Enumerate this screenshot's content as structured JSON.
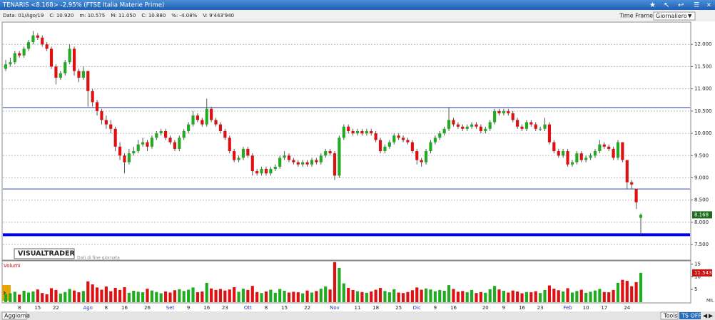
{
  "window": {
    "title": "TENARIS <8.168> -2.95% (FTSE Italia Materie Prime)",
    "info": [
      "Data: 01/Ago/19",
      "C: 10.920",
      "m: 10.575",
      "M: 11.050",
      "C: 10.880",
      "%: -4.08%",
      "V: 9'443'940"
    ],
    "time_frame_label": "Time Frame",
    "time_frame": "Giornaliero",
    "brand": "VISUALTRADER",
    "brand_note": "Dati di fine giornata",
    "buttons": [
      "Aggiorna",
      "Tools",
      "TS OFF"
    ]
  },
  "chart_data": {
    "type": "candlestick",
    "up_color": "#22aa22",
    "down_color": "#dd1111",
    "month_label_color": "#2233cc",
    "grid": true,
    "ylim": [
      7.15,
      12.5
    ],
    "yticks": [
      {
        "value": 7.5,
        "label": "7.500"
      },
      {
        "value": 8,
        "label": "8.000"
      },
      {
        "value": 8.5,
        "label": "8.500"
      },
      {
        "value": 9,
        "label": "9.000"
      },
      {
        "value": 9.5,
        "label": "9.500"
      },
      {
        "value": 10,
        "label": "10.000"
      },
      {
        "value": 10.5,
        "label": "10.500"
      },
      {
        "value": 11,
        "label": "11.000"
      },
      {
        "value": 11.5,
        "label": "11.500"
      },
      {
        "value": 12,
        "label": "12.000"
      }
    ],
    "trend_lines": [
      10.58,
      8.75
    ],
    "support_line": 7.72,
    "categories": [
      null,
      null,
      null,
      "8",
      null,
      null,
      null,
      "15",
      null,
      null,
      null,
      "22",
      null,
      null,
      null,
      null,
      null,
      null,
      "Ago",
      null,
      null,
      null,
      "8",
      null,
      null,
      null,
      "16",
      null,
      null,
      null,
      null,
      "26",
      null,
      null,
      null,
      null,
      "Set",
      null,
      null,
      null,
      "9",
      null,
      null,
      null,
      "16",
      null,
      null,
      null,
      "23",
      null,
      null,
      null,
      null,
      "Ott",
      null,
      null,
      null,
      "8",
      null,
      null,
      null,
      "15",
      null,
      null,
      null,
      null,
      "22",
      null,
      null,
      null,
      null,
      null,
      "Nov",
      null,
      null,
      null,
      null,
      "11",
      null,
      null,
      null,
      "18",
      null,
      null,
      null,
      null,
      "25",
      null,
      null,
      null,
      "Dic",
      null,
      null,
      null,
      "9",
      null,
      null,
      null,
      "16",
      null,
      null,
      null,
      null,
      null,
      null,
      "20",
      null,
      null,
      null,
      "9",
      null,
      null,
      null,
      "16",
      null,
      null,
      null,
      "23",
      null,
      null,
      null,
      null,
      null,
      "Feb",
      null,
      null,
      null,
      "10",
      null,
      null,
      null,
      "17",
      null,
      null,
      null,
      null,
      "24",
      null,
      null,
      null
    ],
    "candles": [
      [
        11.45,
        11.65,
        11.4,
        11.55
      ],
      [
        11.55,
        11.7,
        11.5,
        11.6
      ],
      [
        11.6,
        11.85,
        11.55,
        11.8
      ],
      [
        11.8,
        11.85,
        11.7,
        11.75
      ],
      [
        11.75,
        11.95,
        11.7,
        11.9
      ],
      [
        11.9,
        12.1,
        11.85,
        12.05
      ],
      [
        12.05,
        12.3,
        12.0,
        12.2
      ],
      [
        12.2,
        12.25,
        12.1,
        12.15
      ],
      [
        12.15,
        12.2,
        11.95,
        12.0
      ],
      [
        12.0,
        12.05,
        11.85,
        11.9
      ],
      [
        11.9,
        11.95,
        11.45,
        11.5
      ],
      [
        11.5,
        11.55,
        11.1,
        11.25
      ],
      [
        11.25,
        11.4,
        11.2,
        11.35
      ],
      [
        11.35,
        11.65,
        11.3,
        11.6
      ],
      [
        11.6,
        12.0,
        11.55,
        11.9
      ],
      [
        11.9,
        11.95,
        11.3,
        11.4
      ],
      [
        11.4,
        11.45,
        11.15,
        11.25
      ],
      [
        11.25,
        11.5,
        11.2,
        11.4
      ],
      [
        11.4,
        11.4,
        10.6,
        10.95
      ],
      [
        10.95,
        11.0,
        10.6,
        10.7
      ],
      [
        10.7,
        10.75,
        10.4,
        10.5
      ],
      [
        10.5,
        10.55,
        10.2,
        10.3
      ],
      [
        10.3,
        10.4,
        10.1,
        10.2
      ],
      [
        10.2,
        10.3,
        10.0,
        10.1
      ],
      [
        10.1,
        10.15,
        9.6,
        9.7
      ],
      [
        9.7,
        9.8,
        9.4,
        9.5
      ],
      [
        9.5,
        9.55,
        9.1,
        9.35
      ],
      [
        9.35,
        9.65,
        9.3,
        9.55
      ],
      [
        9.55,
        9.7,
        9.5,
        9.6
      ],
      [
        9.6,
        9.85,
        9.55,
        9.75
      ],
      [
        9.75,
        9.9,
        9.7,
        9.8
      ],
      [
        9.8,
        9.85,
        9.6,
        9.7
      ],
      [
        9.7,
        9.95,
        9.65,
        9.9
      ],
      [
        9.9,
        10.05,
        9.85,
        10.0
      ],
      [
        10.0,
        10.1,
        9.95,
        10.05
      ],
      [
        10.05,
        10.1,
        9.85,
        9.9
      ],
      [
        9.9,
        9.95,
        9.75,
        9.8
      ],
      [
        9.8,
        9.85,
        9.6,
        9.65
      ],
      [
        9.65,
        9.95,
        9.6,
        9.9
      ],
      [
        9.9,
        10.1,
        9.85,
        10.05
      ],
      [
        10.05,
        10.25,
        10.0,
        10.2
      ],
      [
        10.2,
        10.5,
        10.15,
        10.4
      ],
      [
        10.4,
        10.45,
        10.25,
        10.3
      ],
      [
        10.3,
        10.35,
        10.15,
        10.2
      ],
      [
        10.2,
        10.78,
        10.15,
        10.55
      ],
      [
        10.55,
        10.6,
        10.25,
        10.3
      ],
      [
        10.3,
        10.35,
        10.15,
        10.2
      ],
      [
        10.2,
        10.25,
        10.0,
        10.05
      ],
      [
        10.05,
        10.1,
        9.85,
        9.9
      ],
      [
        9.9,
        9.95,
        9.55,
        9.6
      ],
      [
        9.6,
        9.65,
        9.35,
        9.4
      ],
      [
        9.4,
        9.5,
        9.35,
        9.45
      ],
      [
        9.45,
        9.7,
        9.4,
        9.65
      ],
      [
        9.65,
        9.7,
        9.45,
        9.5
      ],
      [
        9.5,
        9.55,
        9.05,
        9.15
      ],
      [
        9.15,
        9.2,
        9.05,
        9.1
      ],
      [
        9.1,
        9.25,
        9.05,
        9.2
      ],
      [
        9.2,
        9.25,
        9.05,
        9.1
      ],
      [
        9.1,
        9.25,
        9.05,
        9.2
      ],
      [
        9.2,
        9.3,
        9.15,
        9.25
      ],
      [
        9.25,
        9.5,
        9.2,
        9.45
      ],
      [
        9.45,
        9.6,
        9.4,
        9.5
      ],
      [
        9.5,
        9.55,
        9.35,
        9.4
      ],
      [
        9.4,
        9.45,
        9.3,
        9.35
      ],
      [
        9.35,
        9.4,
        9.25,
        9.3
      ],
      [
        9.3,
        9.4,
        9.25,
        9.35
      ],
      [
        9.35,
        9.4,
        9.25,
        9.3
      ],
      [
        9.3,
        9.45,
        9.25,
        9.4
      ],
      [
        9.4,
        9.45,
        9.3,
        9.35
      ],
      [
        9.35,
        9.55,
        9.3,
        9.5
      ],
      [
        9.5,
        9.65,
        9.45,
        9.6
      ],
      [
        9.6,
        9.65,
        9.5,
        9.55
      ],
      [
        9.55,
        9.6,
        8.95,
        9.05
      ],
      [
        9.05,
        9.95,
        9.0,
        9.9
      ],
      [
        9.9,
        10.2,
        9.85,
        10.15
      ],
      [
        10.15,
        10.2,
        10.0,
        10.05
      ],
      [
        10.05,
        10.1,
        9.95,
        10.0
      ],
      [
        10.0,
        10.1,
        9.95,
        10.05
      ],
      [
        10.05,
        10.1,
        9.95,
        10.0
      ],
      [
        10.0,
        10.1,
        9.95,
        10.05
      ],
      [
        10.05,
        10.1,
        9.95,
        10.0
      ],
      [
        10.0,
        10.05,
        9.8,
        9.85
      ],
      [
        9.85,
        9.9,
        9.55,
        9.6
      ],
      [
        9.6,
        9.75,
        9.55,
        9.7
      ],
      [
        9.7,
        9.85,
        9.65,
        9.8
      ],
      [
        9.8,
        10.0,
        9.75,
        9.95
      ],
      [
        9.95,
        10.0,
        9.85,
        9.9
      ],
      [
        9.9,
        9.95,
        9.8,
        9.85
      ],
      [
        9.85,
        9.9,
        9.75,
        9.8
      ],
      [
        9.8,
        9.85,
        9.55,
        9.6
      ],
      [
        9.6,
        9.65,
        9.3,
        9.4
      ],
      [
        9.4,
        9.45,
        9.25,
        9.35
      ],
      [
        9.35,
        9.65,
        9.3,
        9.6
      ],
      [
        9.6,
        9.85,
        9.55,
        9.8
      ],
      [
        9.8,
        9.95,
        9.75,
        9.9
      ],
      [
        9.9,
        10.05,
        9.85,
        10.0
      ],
      [
        10.0,
        10.15,
        9.95,
        10.1
      ],
      [
        10.1,
        10.58,
        10.05,
        10.3
      ],
      [
        10.3,
        10.35,
        10.15,
        10.2
      ],
      [
        10.2,
        10.25,
        10.1,
        10.15
      ],
      [
        10.15,
        10.2,
        10.05,
        10.1
      ],
      [
        10.1,
        10.2,
        10.05,
        10.15
      ],
      [
        10.15,
        10.25,
        10.1,
        10.2
      ],
      [
        10.2,
        10.25,
        10.1,
        10.15
      ],
      [
        10.15,
        10.2,
        10.0,
        10.05
      ],
      [
        10.05,
        10.15,
        10.0,
        10.1
      ],
      [
        10.1,
        10.3,
        10.05,
        10.25
      ],
      [
        10.25,
        10.55,
        10.2,
        10.5
      ],
      [
        10.5,
        10.55,
        10.4,
        10.45
      ],
      [
        10.45,
        10.55,
        10.4,
        10.5
      ],
      [
        10.5,
        10.55,
        10.4,
        10.45
      ],
      [
        10.45,
        10.5,
        10.25,
        10.3
      ],
      [
        10.3,
        10.35,
        10.1,
        10.15
      ],
      [
        10.15,
        10.2,
        10.05,
        10.1
      ],
      [
        10.1,
        10.3,
        10.05,
        10.25
      ],
      [
        10.25,
        10.3,
        10.15,
        10.2
      ],
      [
        10.2,
        10.25,
        10.05,
        10.1
      ],
      [
        10.1,
        10.15,
        10.05,
        10.1
      ],
      [
        10.1,
        10.35,
        10.05,
        10.2
      ],
      [
        10.2,
        10.25,
        9.75,
        9.8
      ],
      [
        9.8,
        9.85,
        9.55,
        9.6
      ],
      [
        9.6,
        9.65,
        9.45,
        9.5
      ],
      [
        9.5,
        9.65,
        9.45,
        9.6
      ],
      [
        9.6,
        9.65,
        9.25,
        9.3
      ],
      [
        9.3,
        9.4,
        9.25,
        9.35
      ],
      [
        9.35,
        9.6,
        9.3,
        9.55
      ],
      [
        9.55,
        9.6,
        9.35,
        9.4
      ],
      [
        9.4,
        9.5,
        9.35,
        9.45
      ],
      [
        9.45,
        9.55,
        9.4,
        9.5
      ],
      [
        9.5,
        9.65,
        9.45,
        9.6
      ],
      [
        9.6,
        9.85,
        9.55,
        9.75
      ],
      [
        9.75,
        9.8,
        9.65,
        9.7
      ],
      [
        9.7,
        9.75,
        9.6,
        9.65
      ],
      [
        9.65,
        9.7,
        9.4,
        9.45
      ],
      [
        9.45,
        9.85,
        9.4,
        9.8
      ],
      [
        9.8,
        9.8,
        9.35,
        9.4
      ],
      [
        9.4,
        9.4,
        8.75,
        8.9
      ],
      [
        8.9,
        8.95,
        8.75,
        8.85
      ],
      [
        8.75,
        8.75,
        8.3,
        8.45
      ],
      [
        8.1,
        8.2,
        7.72,
        8.168
      ]
    ],
    "volume_title": "Volumi",
    "volume_unit": "MIL",
    "volume_ylim": [
      0,
      16
    ],
    "volume_ticks": [
      5,
      10,
      15
    ],
    "volumes": [
      3.2,
      3.5,
      4.1,
      3.0,
      4.5,
      3.8,
      4.2,
      5.0,
      3.6,
      3.1,
      5.5,
      4.8,
      3.4,
      4.0,
      5.2,
      4.6,
      3.9,
      4.4,
      8.2,
      7.0,
      5.8,
      4.9,
      6.2,
      4.3,
      5.6,
      4.8,
      5.9,
      3.7,
      4.5,
      4.1,
      3.9,
      5.3,
      4.6,
      4.0,
      3.5,
      4.2,
      3.8,
      4.7,
      5.1,
      4.4,
      4.9,
      5.8,
      3.9,
      4.2,
      7.6,
      5.4,
      4.8,
      5.2,
      4.6,
      5.0,
      5.9,
      4.1,
      5.3,
      4.8,
      6.4,
      4.0,
      3.6,
      4.2,
      4.9,
      3.7,
      5.2,
      4.5,
      3.8,
      4.1,
      3.9,
      3.5,
      4.6,
      3.8,
      4.4,
      5.3,
      6.2,
      5.0,
      15.8,
      13.5,
      7.4,
      5.6,
      4.8,
      4.3,
      4.0,
      3.7,
      4.2,
      4.9,
      5.6,
      4.4,
      3.9,
      5.1,
      3.8,
      3.6,
      4.0,
      4.7,
      5.8,
      4.9,
      5.4,
      5.0,
      4.3,
      4.8,
      4.5,
      6.7,
      5.2,
      4.1,
      4.4,
      3.9,
      4.8,
      3.6,
      4.0,
      3.7,
      5.1,
      6.4,
      5.0,
      4.5,
      3.8,
      4.6,
      4.2,
      3.5,
      4.0,
      3.9,
      4.3,
      3.6,
      4.8,
      6.6,
      5.3,
      4.7,
      4.2,
      5.5,
      3.8,
      4.4,
      4.9,
      3.7,
      4.1,
      4.6,
      5.2,
      4.0,
      3.9,
      4.8,
      7.6,
      8.8,
      8.4,
      6.3,
      7.9,
      11.543
    ]
  }
}
